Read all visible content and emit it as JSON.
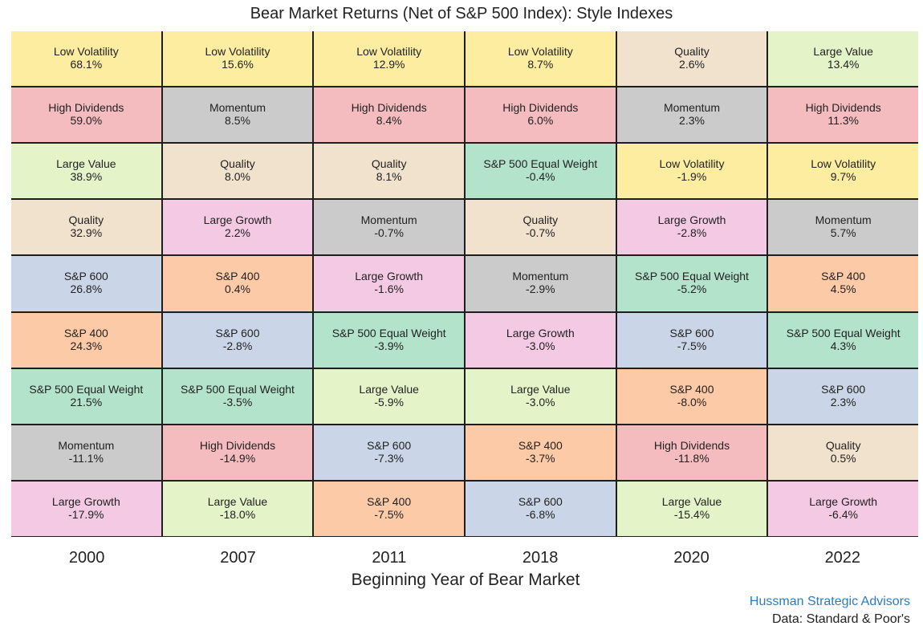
{
  "chart_data": {
    "type": "table",
    "title": "Bear Market Returns (Net of S&P 500 Index): Style Indexes",
    "xlabel": "Beginning Year of Bear Market",
    "years": [
      "2000",
      "2007",
      "2011",
      "2018",
      "2020",
      "2022"
    ],
    "columns": [
      [
        {
          "name": "Low Volatility",
          "value": "68.1%"
        },
        {
          "name": "High Dividends",
          "value": "59.0%"
        },
        {
          "name": "Large Value",
          "value": "38.9%"
        },
        {
          "name": "Quality",
          "value": "32.9%"
        },
        {
          "name": "S&P 600",
          "value": "26.8%"
        },
        {
          "name": "S&P 400",
          "value": "24.3%"
        },
        {
          "name": "S&P 500 Equal Weight",
          "value": "21.5%"
        },
        {
          "name": "Momentum",
          "value": "-11.1%"
        },
        {
          "name": "Large Growth",
          "value": "-17.9%"
        }
      ],
      [
        {
          "name": "Low Volatility",
          "value": "15.6%"
        },
        {
          "name": "Momentum",
          "value": "8.5%"
        },
        {
          "name": "Quality",
          "value": "8.0%"
        },
        {
          "name": "Large Growth",
          "value": "2.2%"
        },
        {
          "name": "S&P 400",
          "value": "0.4%"
        },
        {
          "name": "S&P 600",
          "value": "-2.8%"
        },
        {
          "name": "S&P 500 Equal Weight",
          "value": "-3.5%"
        },
        {
          "name": "High Dividends",
          "value": "-14.9%"
        },
        {
          "name": "Large Value",
          "value": "-18.0%"
        }
      ],
      [
        {
          "name": "Low Volatility",
          "value": "12.9%"
        },
        {
          "name": "High Dividends",
          "value": "8.4%"
        },
        {
          "name": "Quality",
          "value": "8.1%"
        },
        {
          "name": "Momentum",
          "value": "-0.7%"
        },
        {
          "name": "Large Growth",
          "value": "-1.6%"
        },
        {
          "name": "S&P 500 Equal Weight",
          "value": "-3.9%"
        },
        {
          "name": "Large Value",
          "value": "-5.9%"
        },
        {
          "name": "S&P 600",
          "value": "-7.3%"
        },
        {
          "name": "S&P 400",
          "value": "-7.5%"
        }
      ],
      [
        {
          "name": "Low Volatility",
          "value": "8.7%"
        },
        {
          "name": "High Dividends",
          "value": "6.0%"
        },
        {
          "name": "S&P 500 Equal Weight",
          "value": "-0.4%"
        },
        {
          "name": "Quality",
          "value": "-0.7%"
        },
        {
          "name": "Momentum",
          "value": "-2.9%"
        },
        {
          "name": "Large Growth",
          "value": "-3.0%"
        },
        {
          "name": "Large Value",
          "value": "-3.0%"
        },
        {
          "name": "S&P 400",
          "value": "-3.7%"
        },
        {
          "name": "S&P 600",
          "value": "-6.8%"
        }
      ],
      [
        {
          "name": "Quality",
          "value": "2.6%"
        },
        {
          "name": "Momentum",
          "value": "2.3%"
        },
        {
          "name": "Low Volatility",
          "value": "-1.9%"
        },
        {
          "name": "Large Growth",
          "value": "-2.8%"
        },
        {
          "name": "S&P 500 Equal Weight",
          "value": "-5.2%"
        },
        {
          "name": "S&P 600",
          "value": "-7.5%"
        },
        {
          "name": "S&P 400",
          "value": "-8.0%"
        },
        {
          "name": "High Dividends",
          "value": "-11.8%"
        },
        {
          "name": "Large Value",
          "value": "-15.4%"
        }
      ],
      [
        {
          "name": "Large Value",
          "value": "13.4%"
        },
        {
          "name": "High Dividends",
          "value": "11.3%"
        },
        {
          "name": "Low Volatility",
          "value": "9.7%"
        },
        {
          "name": "Momentum",
          "value": "5.7%"
        },
        {
          "name": "S&P 400",
          "value": "4.5%"
        },
        {
          "name": "S&P 500 Equal Weight",
          "value": "4.3%"
        },
        {
          "name": "S&P 600",
          "value": "2.3%"
        },
        {
          "name": "Quality",
          "value": "0.5%"
        },
        {
          "name": "Large Growth",
          "value": "-6.4%"
        }
      ]
    ],
    "colors": {
      "Low Volatility": "#fdeda0",
      "High Dividends": "#f4bcbf",
      "Large Value": "#e4f3c8",
      "Quality": "#f1e2ce",
      "S&P 600": "#cad6e7",
      "S&P 400": "#fccaa6",
      "S&P 500 Equal Weight": "#b3e3cb",
      "Momentum": "#cbcbcb",
      "Large Growth": "#f4c9e3"
    }
  },
  "footer": {
    "brand": "Hussman Strategic Advisors",
    "source": "Data: Standard & Poor's"
  }
}
